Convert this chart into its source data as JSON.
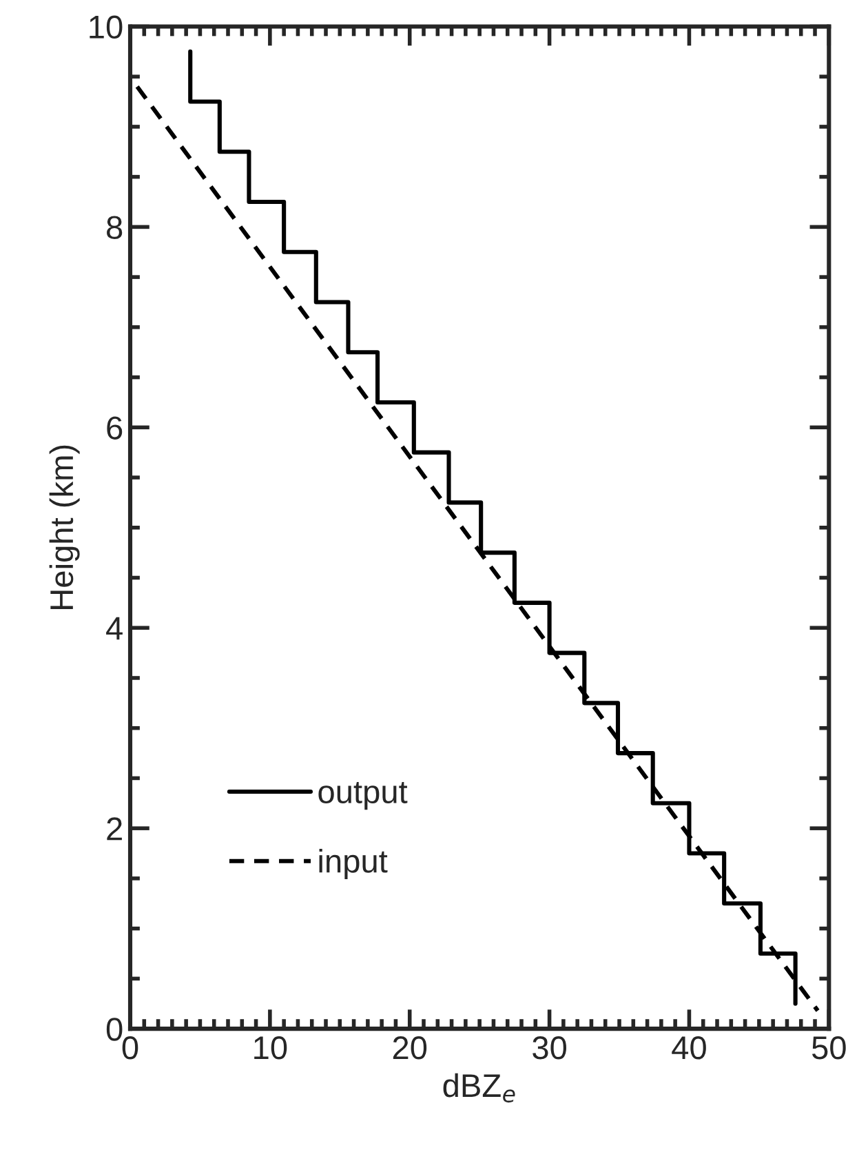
{
  "chart_data": {
    "type": "line",
    "xlabel": "dBZ$_{e}$",
    "ylabel": "Height (km)",
    "xlim": [
      0,
      50
    ],
    "xticks": [
      0,
      10,
      20,
      30,
      40,
      50
    ],
    "ylim": [
      0,
      10
    ],
    "yticks": [
      0,
      2,
      4,
      6,
      8,
      10
    ],
    "grid": false,
    "legend": "bottom left",
    "marker": "none",
    "series": [
      {
        "name": "output",
        "color": "#000000",
        "line_style": "solid",
        "x": [
          4.3,
          4.3,
          6.4,
          6.4,
          8.5,
          8.5,
          11.0,
          11.0,
          13.3,
          13.3,
          15.6,
          15.6,
          17.7,
          17.7,
          20.3,
          20.3,
          22.8,
          22.8,
          25.1,
          25.1,
          27.5,
          27.5,
          30.0,
          30.0,
          32.5,
          32.5,
          34.9,
          34.9,
          37.4,
          37.4,
          40.0,
          40.0,
          42.5,
          42.5,
          45.1,
          45.1,
          47.6,
          47.6
        ],
        "values": [
          9.75,
          9.25,
          9.25,
          8.75,
          8.75,
          8.25,
          8.25,
          7.75,
          7.75,
          7.25,
          7.25,
          6.75,
          6.75,
          6.25,
          6.25,
          5.75,
          5.75,
          5.25,
          5.25,
          4.75,
          4.75,
          4.25,
          4.25,
          3.75,
          3.75,
          3.25,
          3.25,
          2.75,
          2.75,
          2.25,
          2.25,
          1.75,
          1.75,
          1.25,
          1.25,
          0.75,
          0.75,
          0.25
        ]
      },
      {
        "name": "input",
        "color": "#000000",
        "line_style": "dashed",
        "x": [
          0.5,
          49.2
        ],
        "values": [
          9.4,
          0.18
        ]
      }
    ]
  }
}
